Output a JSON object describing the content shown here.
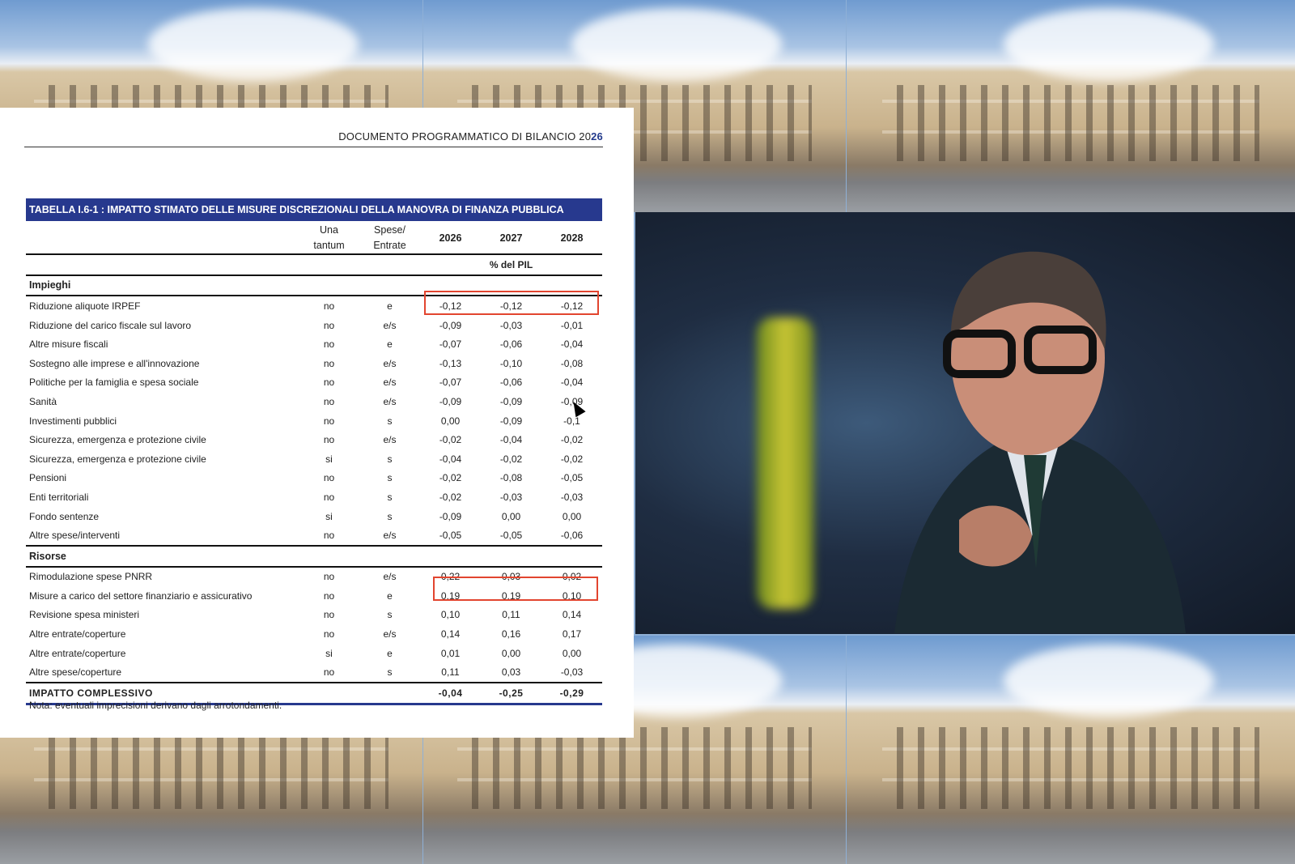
{
  "document": {
    "header": "DOCUMENTO PROGRAMMATICO DI BILANCIO 20",
    "header_year_suffix": "26",
    "table_title": "TABELLA I.6-1 : IMPATTO STIMATO DELLE MISURE DISCREZIONALI DELLA MANOVRA DI FINANZA PUBBLICA",
    "columns": {
      "una_tantum": [
        "Una",
        "tantum"
      ],
      "spese_entrate": [
        "Spese/",
        "Entrate"
      ],
      "years": [
        "2026",
        "2027",
        "2028"
      ],
      "unit": "% del PIL"
    },
    "sections": [
      {
        "name": "Impieghi",
        "rows": [
          {
            "label": "Riduzione aliquote IRPEF",
            "una_tantum": "no",
            "se": "e",
            "v": [
              "-0,12",
              "-0,12",
              "-0,12"
            ],
            "highlighted": true
          },
          {
            "label": "Riduzione del carico fiscale sul lavoro",
            "una_tantum": "no",
            "se": "e/s",
            "v": [
              "-0,09",
              "-0,03",
              "-0,01"
            ]
          },
          {
            "label": "Altre misure fiscali",
            "una_tantum": "no",
            "se": "e",
            "v": [
              "-0,07",
              "-0,06",
              "-0,04"
            ]
          },
          {
            "label": "Sostegno alle imprese e all'innovazione",
            "una_tantum": "no",
            "se": "e/s",
            "v": [
              "-0,13",
              "-0,10",
              "-0,08"
            ]
          },
          {
            "label": "Politiche per la famiglia e spesa sociale",
            "una_tantum": "no",
            "se": "e/s",
            "v": [
              "-0,07",
              "-0,06",
              "-0,04"
            ]
          },
          {
            "label": "Sanità",
            "una_tantum": "no",
            "se": "e/s",
            "v": [
              "-0,09",
              "-0,09",
              "-0,09"
            ]
          },
          {
            "label": "Investimenti pubblici",
            "una_tantum": "no",
            "se": "s",
            "v": [
              "0,00",
              "-0,09",
              "-0,1"
            ]
          },
          {
            "label": "Sicurezza, emergenza e protezione civile",
            "una_tantum": "no",
            "se": "e/s",
            "v": [
              "-0,02",
              "-0,04",
              "-0,02"
            ]
          },
          {
            "label": "Sicurezza, emergenza e protezione civile",
            "una_tantum": "si",
            "se": "s",
            "v": [
              "-0,04",
              "-0,02",
              "-0,02"
            ]
          },
          {
            "label": "Pensioni",
            "una_tantum": "no",
            "se": "s",
            "v": [
              "-0,02",
              "-0,08",
              "-0,05"
            ]
          },
          {
            "label": "Enti territoriali",
            "una_tantum": "no",
            "se": "s",
            "v": [
              "-0,02",
              "-0,03",
              "-0,03"
            ]
          },
          {
            "label": "Fondo sentenze",
            "una_tantum": "si",
            "se": "s",
            "v": [
              "-0,09",
              "0,00",
              "0,00"
            ]
          },
          {
            "label": "Altre spese/interventi",
            "una_tantum": "no",
            "se": "e/s",
            "v": [
              "-0,05",
              "-0,05",
              "-0,06"
            ]
          }
        ]
      },
      {
        "name": "Risorse",
        "rows": [
          {
            "label": "Rimodulazione spese PNRR",
            "una_tantum": "no",
            "se": "e/s",
            "v": [
              "0,22",
              "0,03",
              "0,02"
            ]
          },
          {
            "label": "Misure a carico del settore finanziario e assicurativo",
            "una_tantum": "no",
            "se": "e",
            "v": [
              "0,19",
              "0,19",
              "0,10"
            ],
            "highlighted": true
          },
          {
            "label": "Revisione spesa ministeri",
            "una_tantum": "no",
            "se": "s",
            "v": [
              "0,10",
              "0,11",
              "0,14"
            ]
          },
          {
            "label": "Altre entrate/coperture",
            "una_tantum": "no",
            "se": "e/s",
            "v": [
              "0,14",
              "0,16",
              "0,17"
            ]
          },
          {
            "label": "Altre entrate/coperture",
            "una_tantum": "si",
            "se": "e",
            "v": [
              "0,01",
              "0,00",
              "0,00"
            ]
          },
          {
            "label": "Altre spese/coperture",
            "una_tantum": "no",
            "se": "s",
            "v": [
              "0,11",
              "0,03",
              "-0,03"
            ]
          }
        ]
      }
    ],
    "total": {
      "label": "IMPATTO COMPLESSIVO",
      "v": [
        "-0,04",
        "-0,25",
        "-0,29"
      ]
    },
    "note": "Nota: eventuali imprecisioni derivano dagli arrotondamenti.",
    "colors": {
      "title_bar": "#27398e",
      "highlight": "#e2452f"
    }
  },
  "photos": {
    "background": "palazzo-chigi-photo",
    "portrait": "man-with-glasses-photo"
  }
}
